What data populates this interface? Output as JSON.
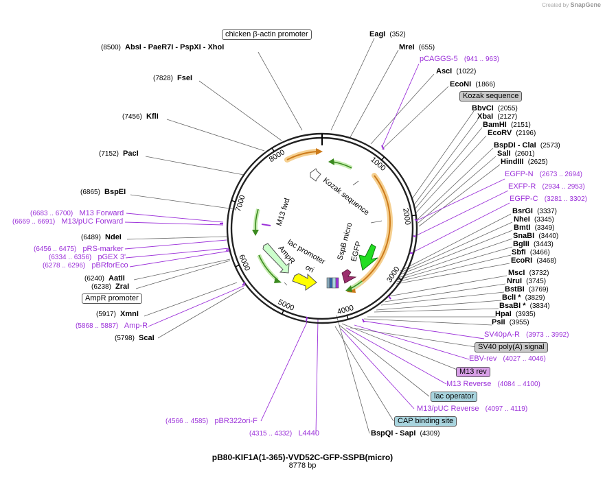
{
  "credit": {
    "prefix": "Created by",
    "brand": "SnapGene"
  },
  "plasmid": {
    "name": "pB80-KIF1A(1-365)-VVD52C-GFP-SSPB(micro)",
    "size_label": "8778 bp",
    "length": 8778
  },
  "ticks": [
    {
      "bp": 1000,
      "label": "1000"
    },
    {
      "bp": 2000,
      "label": "2000"
    },
    {
      "bp": 3000,
      "label": "3000"
    },
    {
      "bp": 4000,
      "label": "4000"
    },
    {
      "bp": 5000,
      "label": "5000"
    },
    {
      "bp": 6000,
      "label": "6000"
    },
    {
      "bp": 7000,
      "label": "7000"
    },
    {
      "bp": 8000,
      "label": "8000"
    }
  ],
  "enzymes_left": [
    {
      "text": "AbsI  - PaeR7I  - PspXI  - XhoI",
      "pos": "(8500)"
    },
    {
      "text": "FseI",
      "pos": "(7828)"
    },
    {
      "text": "KflI",
      "pos": "(7456)"
    },
    {
      "text": "PacI",
      "pos": "(7152)"
    },
    {
      "text": "BspEI",
      "pos": "(6865)"
    },
    {
      "text": "NdeI",
      "pos": "(6489)"
    },
    {
      "text": "AatII",
      "pos": "(6240)"
    },
    {
      "text": "ZraI",
      "pos": "(6238)"
    },
    {
      "text": "XmnI",
      "pos": "(5917)"
    },
    {
      "text": "ScaI",
      "pos": "(5798)"
    }
  ],
  "enzymes_right": [
    {
      "text": "EagI",
      "pos": "(352)"
    },
    {
      "text": "MreI",
      "pos": "(655)"
    },
    {
      "text": "AscI",
      "pos": "(1022)"
    },
    {
      "text": "EcoNI",
      "pos": "(1866)"
    },
    {
      "text": "BbvCI",
      "pos": "(2055)"
    },
    {
      "text": "XbaI",
      "pos": "(2127)"
    },
    {
      "text": "BamHI",
      "pos": "(2151)"
    },
    {
      "text": "EcoRV",
      "pos": "(2196)"
    },
    {
      "text": "BspDI  - ClaI",
      "pos": "(2573)"
    },
    {
      "text": "SalI",
      "pos": "(2601)"
    },
    {
      "text": "HindIII",
      "pos": "(2625)"
    },
    {
      "text": "BsrGI",
      "pos": "(3337)"
    },
    {
      "text": "NheI",
      "pos": "(3345)"
    },
    {
      "text": "BmtI",
      "pos": "(3349)"
    },
    {
      "text": "SnaBI",
      "pos": "(3440)"
    },
    {
      "text": "BglII",
      "pos": "(3443)"
    },
    {
      "text": "SbfI",
      "pos": "(3466)"
    },
    {
      "text": "EcoRI",
      "pos": "(3468)"
    },
    {
      "text": "MscI",
      "pos": "(3732)"
    },
    {
      "text": "NruI",
      "pos": "(3745)"
    },
    {
      "text": "BstBI",
      "pos": "(3769)"
    },
    {
      "text": "BclI *",
      "pos": "(3829)"
    },
    {
      "text": "BsaBI *",
      "pos": "(3834)"
    },
    {
      "text": "HpaI",
      "pos": "(3935)"
    },
    {
      "text": "PsiI",
      "pos": "(3955)"
    },
    {
      "text": "BspQI  - SapI",
      "pos": "(4309)"
    }
  ],
  "primers": [
    {
      "name": "pCAGGS-5",
      "range": "(941 .. 963)"
    },
    {
      "name": "EGFP-N",
      "range": "(2673 .. 2694)"
    },
    {
      "name": "EXFP-R",
      "range": "(2934 .. 2953)"
    },
    {
      "name": "EGFP-C",
      "range": "(3281 .. 3302)"
    },
    {
      "name": "SV40pA-R",
      "range": "(3973 .. 3992)"
    },
    {
      "name": "EBV-rev",
      "range": "(4027 .. 4046)"
    },
    {
      "name": "M13 Reverse",
      "range": "(4084 .. 4100)"
    },
    {
      "name": "M13/pUC Reverse",
      "range": "(4097 .. 4119)"
    },
    {
      "name": "pBR322ori-F",
      "range": "(4566 .. 4585)"
    },
    {
      "name": "L4440",
      "range": "(4315 .. 4332)"
    },
    {
      "name": "Amp-R",
      "range": "(5868 .. 5887)"
    },
    {
      "name": "pBRforEco",
      "range": "(6278 .. 6296)"
    },
    {
      "name": "pGEX 3'",
      "range": "(6334 .. 6356)"
    },
    {
      "name": "pRS-marker",
      "range": "(6456 .. 6475)"
    },
    {
      "name": "M13/pUC Forward",
      "range": "(6669 .. 6691)"
    },
    {
      "name": "M13 Forward",
      "range": "(6683 .. 6700)"
    }
  ],
  "feature_boxes": [
    {
      "text": "chicken β-actin promoter",
      "color": "#ffffff"
    },
    {
      "text": "Kozak sequence",
      "color": "#c8c8c8"
    },
    {
      "text": "SV40 poly(A) signal",
      "color": "#c8c8c8"
    },
    {
      "text": "M13 rev",
      "color": "#d9a0e8"
    },
    {
      "text": "lac operator",
      "color": "#a8d4de"
    },
    {
      "text": "CAP binding site",
      "color": "#a8d4de"
    },
    {
      "text": "AmpR promoter",
      "color": "#ffffff"
    }
  ],
  "inner_labels": [
    {
      "text": "Kozak sequence"
    },
    {
      "text": "SspB micro"
    },
    {
      "text": "EGFP"
    },
    {
      "text": "M13 fwd"
    },
    {
      "text": "lac promoter"
    },
    {
      "text": "AmpR"
    },
    {
      "text": "ori"
    }
  ],
  "colors": {
    "primer": "#9b30d9",
    "cds_orange": "#f2a93b",
    "egfp": "#22dd22",
    "ampr": "#ccffcc",
    "ori": "#ffff00",
    "sspb": "#9b2f6e",
    "arrow_green": "#77cc44"
  }
}
